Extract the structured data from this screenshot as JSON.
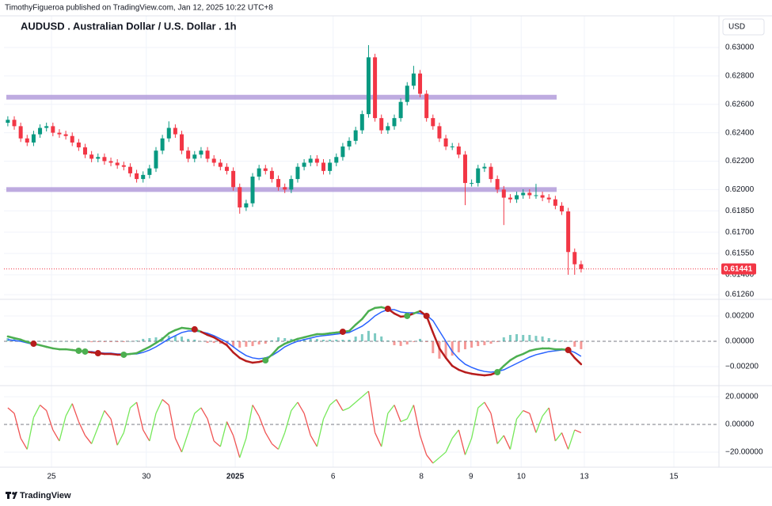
{
  "header": {
    "byline": "TimothyFigueroa published on TradingView.com, Jan 12, 2025 10:22 UTC+8"
  },
  "footer": {
    "brand": "TradingView"
  },
  "chart_data": [
    {
      "type": "candlestick",
      "title": "AUDUSD . Australian Dollar / U.S. Dollar . 1h",
      "currency": "USD",
      "open": [
        0.6247,
        0.62491,
        0.62446,
        0.6236,
        0.62331,
        0.62389,
        0.62434,
        0.62446,
        0.624,
        0.62389,
        0.62377,
        0.62331,
        0.62297,
        0.62246,
        0.62217,
        0.62229,
        0.622,
        0.62189,
        0.62171,
        0.6216,
        0.62114,
        0.62074,
        0.62103,
        0.62149,
        0.62274,
        0.6236,
        0.62434,
        0.62389,
        0.62274,
        0.62217,
        0.62246,
        0.62274,
        0.62217,
        0.62189,
        0.6216,
        0.62131,
        0.62017,
        0.61874,
        0.61903,
        0.62091,
        0.62149,
        0.62131,
        0.62074,
        0.62017,
        0.62,
        0.62074,
        0.6216,
        0.62189,
        0.62217,
        0.62189,
        0.62131,
        0.62189,
        0.62229,
        0.62303,
        0.62343,
        0.62417,
        0.62531,
        0.62931,
        0.62503,
        0.62417,
        0.62446,
        0.62503,
        0.62617,
        0.62731,
        0.62817,
        0.62674,
        0.62503,
        0.62446,
        0.6236,
        0.62303,
        0.62303,
        0.62246,
        0.62046,
        0.62046,
        0.62149,
        0.6216,
        0.62074,
        0.62,
        0.61943,
        0.61931,
        0.6196,
        0.61977,
        0.6196,
        0.6196,
        0.61943,
        0.61931,
        0.61886,
        0.61846,
        0.6156,
        0.61474
      ],
      "high": [
        0.62516,
        0.62516,
        0.62471,
        0.62385,
        0.62414,
        0.62459,
        0.62471,
        0.62471,
        0.62425,
        0.62414,
        0.62402,
        0.62356,
        0.62322,
        0.62271,
        0.62254,
        0.62254,
        0.62225,
        0.62214,
        0.62196,
        0.62185,
        0.62139,
        0.62128,
        0.62174,
        0.62299,
        0.62385,
        0.6248,
        0.62459,
        0.62414,
        0.62299,
        0.62271,
        0.62299,
        0.62299,
        0.62242,
        0.62214,
        0.62185,
        0.62156,
        0.62042,
        0.61928,
        0.62116,
        0.62174,
        0.62174,
        0.62156,
        0.62099,
        0.62042,
        0.62099,
        0.62185,
        0.62214,
        0.62242,
        0.62242,
        0.62214,
        0.62214,
        0.62254,
        0.62328,
        0.62368,
        0.62442,
        0.62556,
        0.63017,
        0.62956,
        0.62528,
        0.62471,
        0.62528,
        0.62642,
        0.62756,
        0.62871,
        0.62842,
        0.62699,
        0.62528,
        0.62471,
        0.62385,
        0.62328,
        0.62328,
        0.62271,
        0.62071,
        0.62174,
        0.62185,
        0.62185,
        0.62099,
        0.62025,
        0.61968,
        0.61985,
        0.62002,
        0.62002,
        0.6204,
        0.61985,
        0.61968,
        0.61956,
        0.61911,
        0.61871,
        0.61585,
        0.61499
      ],
      "low": [
        0.62445,
        0.62421,
        0.62335,
        0.62306,
        0.62306,
        0.62364,
        0.62409,
        0.62375,
        0.62364,
        0.62352,
        0.62306,
        0.62272,
        0.62221,
        0.62192,
        0.62192,
        0.62175,
        0.62164,
        0.62146,
        0.62135,
        0.62089,
        0.62049,
        0.62049,
        0.62078,
        0.62124,
        0.62249,
        0.62335,
        0.62364,
        0.62249,
        0.62192,
        0.62192,
        0.62221,
        0.62192,
        0.62164,
        0.62135,
        0.62106,
        0.61992,
        0.6183,
        0.61849,
        0.61878,
        0.62066,
        0.62106,
        0.62049,
        0.61992,
        0.61975,
        0.61975,
        0.62049,
        0.62135,
        0.62164,
        0.62164,
        0.62106,
        0.62106,
        0.62164,
        0.62204,
        0.62278,
        0.62318,
        0.62392,
        0.62506,
        0.62478,
        0.62392,
        0.62392,
        0.62421,
        0.62478,
        0.62592,
        0.62706,
        0.62649,
        0.62478,
        0.62421,
        0.62335,
        0.62278,
        0.62278,
        0.62221,
        0.6189,
        0.62021,
        0.62021,
        0.62124,
        0.62049,
        0.61975,
        0.6175,
        0.61906,
        0.61906,
        0.61935,
        0.61935,
        0.61935,
        0.61918,
        0.61906,
        0.61861,
        0.61821,
        0.614,
        0.614,
        0.61416
      ],
      "close": [
        0.62491,
        0.62446,
        0.6236,
        0.62331,
        0.62389,
        0.62434,
        0.62446,
        0.624,
        0.62389,
        0.62377,
        0.62331,
        0.62297,
        0.62246,
        0.62217,
        0.62229,
        0.622,
        0.62189,
        0.62171,
        0.6216,
        0.62114,
        0.62074,
        0.62103,
        0.62149,
        0.62274,
        0.6236,
        0.62434,
        0.62389,
        0.62274,
        0.62217,
        0.62246,
        0.62274,
        0.62217,
        0.62189,
        0.6216,
        0.62131,
        0.62017,
        0.61874,
        0.61903,
        0.62091,
        0.62149,
        0.62131,
        0.62074,
        0.62017,
        0.62,
        0.62074,
        0.6216,
        0.62189,
        0.62217,
        0.62189,
        0.62131,
        0.62189,
        0.62229,
        0.62303,
        0.62343,
        0.62417,
        0.62531,
        0.62931,
        0.62503,
        0.62417,
        0.62446,
        0.62503,
        0.62617,
        0.62731,
        0.62817,
        0.62674,
        0.62503,
        0.62446,
        0.6236,
        0.62303,
        0.62303,
        0.62246,
        0.62046,
        0.62046,
        0.62149,
        0.6216,
        0.62074,
        0.62,
        0.61943,
        0.61931,
        0.6196,
        0.61977,
        0.6196,
        0.6196,
        0.61943,
        0.61931,
        0.61886,
        0.61846,
        0.6156,
        0.61474,
        0.61441
      ],
      "up_color": "#089981",
      "down_color": "#f23645",
      "levels": [
        0.6265,
        0.62
      ],
      "level_color": "#b39ddb",
      "ylim": [
        0.61227,
        0.63223
      ],
      "yticks": [
        {
          "value": 0.63,
          "label": "0.63000"
        },
        {
          "value": 0.628,
          "label": "0.62800"
        },
        {
          "value": 0.626,
          "label": "0.62600"
        },
        {
          "value": 0.624,
          "label": "0.62400"
        },
        {
          "value": 0.622,
          "label": "0.62200"
        },
        {
          "value": 0.62,
          "label": "0.62000"
        },
        {
          "value": 0.6185,
          "label": "0.61850"
        },
        {
          "value": 0.617,
          "label": "0.61700"
        },
        {
          "value": 0.6155,
          "label": "0.61550"
        },
        {
          "value": 0.614,
          "label": "0.61400"
        },
        {
          "value": 0.6126,
          "label": "0.61260"
        }
      ],
      "xlim": [
        -0.6,
        110.4
      ],
      "xticks": [
        {
          "value": 6.78,
          "label": "25"
        },
        {
          "value": 21.5,
          "label": "30"
        },
        {
          "value": 35.3,
          "label": "2025"
        },
        {
          "value": 50.5,
          "label": "6"
        },
        {
          "value": 64.2,
          "label": "8"
        },
        {
          "value": 71.9,
          "label": "9"
        },
        {
          "value": 79.7,
          "label": "10"
        },
        {
          "value": 89.5,
          "label": "13"
        },
        {
          "value": 103.4,
          "label": "15"
        }
      ],
      "grid": true
    },
    {
      "type": "macd",
      "macd": [
        0.00038,
        0.00025,
        0.00013,
        -6e-05,
        -0.00019,
        -0.00031,
        -0.00044,
        -0.00056,
        -0.00063,
        -0.00063,
        -0.00069,
        -0.00075,
        -0.00081,
        -0.00088,
        -0.00094,
        -0.001,
        -0.001,
        -0.00106,
        -0.00106,
        -0.001,
        -0.00094,
        -0.00069,
        -0.00044,
        -0.00013,
        0.00019,
        0.00063,
        0.00088,
        0.00106,
        0.001,
        0.00094,
        0.00075,
        0.0005,
        0.00031,
        0,
        -0.00031,
        -0.00088,
        -0.00131,
        -0.00156,
        -0.00169,
        -0.00163,
        -0.0015,
        -0.00106,
        -0.0005,
        -0.00019,
        0,
        0.00019,
        0.00031,
        0.00044,
        0.00056,
        0.00056,
        0.00063,
        0.00069,
        0.00075,
        0.00081,
        0.00131,
        0.00175,
        0.00238,
        0.00263,
        0.00269,
        0.00256,
        0.00219,
        0.00194,
        0.002,
        0.00219,
        0.00238,
        0.002,
        0.00069,
        -0.00056,
        -0.00131,
        -0.00194,
        -0.00225,
        -0.00244,
        -0.00256,
        -0.00263,
        -0.00269,
        -0.00263,
        -0.00244,
        -0.00194,
        -0.0015,
        -0.00119,
        -0.001,
        -0.00075,
        -0.00063,
        -0.00056,
        -0.00056,
        -0.00063,
        -0.00063,
        -0.00069,
        -0.00131,
        -0.00181
      ],
      "signal": [
        0.00013,
        6e-05,
        0,
        -0.00013,
        -0.00025,
        -0.00031,
        -0.00044,
        -0.00056,
        -0.00063,
        -0.00063,
        -0.00069,
        -0.00075,
        -0.00081,
        -0.00081,
        -0.00088,
        -0.00094,
        -0.00094,
        -0.001,
        -0.001,
        -0.001,
        -0.001,
        -0.00088,
        -0.00069,
        -0.00044,
        -0.00013,
        0.00019,
        0.00044,
        0.00069,
        0.00081,
        0.00081,
        0.00075,
        0.00063,
        0.00044,
        0.00019,
        -6e-05,
        -0.00044,
        -0.00081,
        -0.00113,
        -0.00131,
        -0.00138,
        -0.00131,
        -0.00113,
        -0.00081,
        -0.00044,
        -0.00019,
        0,
        0.00013,
        0.00025,
        0.00038,
        0.00044,
        0.0005,
        0.00056,
        0.00063,
        0.00069,
        0.00094,
        0.00119,
        0.00156,
        0.002,
        0.00231,
        0.0025,
        0.0025,
        0.00231,
        0.00225,
        0.00225,
        0.00219,
        0.00206,
        0.00163,
        0.00081,
        0,
        -0.00081,
        -0.00138,
        -0.00181,
        -0.00206,
        -0.00225,
        -0.00238,
        -0.00244,
        -0.00238,
        -0.00225,
        -0.002,
        -0.00175,
        -0.0015,
        -0.00125,
        -0.00106,
        -0.00094,
        -0.00081,
        -0.00075,
        -0.00069,
        -0.00069,
        -0.00088,
        -0.00119
      ],
      "histogram": [
        0.00025,
        0.00019,
        0.00013,
        7e-05,
        6e-05,
        0,
        0,
        0,
        0,
        0,
        0,
        0,
        0,
        -7e-05,
        -6e-05,
        -6e-05,
        -6e-05,
        -6e-05,
        -6e-05,
        0,
        6e-05,
        0.00019,
        0.00025,
        0.00031,
        0.00032,
        0.00044,
        0.00044,
        0.00037,
        0.00019,
        0.00013,
        0,
        -0.00013,
        -0.00013,
        -0.00019,
        -0.00025,
        -0.00044,
        -0.0005,
        -0.00043,
        -0.00038,
        -0.00025,
        -0.00019,
        7e-05,
        0.00031,
        0.00025,
        0.00019,
        0.00019,
        0.00018,
        0.00019,
        0.00018,
        0.00012,
        0.00013,
        0.00013,
        0.00012,
        0.00012,
        0.00037,
        0.00056,
        0.00082,
        0.00063,
        0.00038,
        6e-05,
        -0.00031,
        -0.00037,
        -0.00025,
        -6e-05,
        0.00019,
        -6e-05,
        -0.00094,
        -0.00137,
        -0.00131,
        -0.00113,
        -0.00087,
        -0.00063,
        -0.0005,
        -0.00038,
        -0.00031,
        -0.00019,
        -6e-05,
        0.00031,
        0.0005,
        0.00056,
        0.0005,
        0.0005,
        0.00043,
        0.00038,
        0.00025,
        0.00012,
        6e-05,
        0,
        -0.00043,
        -0.00062
      ],
      "rise_color": "#4caf50",
      "fall_color": "#b71c1c",
      "signal_color": "#2962ff",
      "hist_up_color": "#26a69a",
      "hist_down_color": "#ef5350",
      "cross_up": [
        11,
        12,
        18,
        40,
        62,
        76
      ],
      "cross_down": [
        4,
        14,
        29,
        52,
        59,
        65,
        87
      ],
      "ylim": [
        -0.0035,
        0.00331
      ],
      "yticks": [
        {
          "value": 0.002,
          "label": "0.00200"
        },
        {
          "value": 0,
          "label": "0.00000"
        },
        {
          "value": -0.002,
          "label": "−0.00200"
        }
      ]
    },
    {
      "type": "line",
      "values": [
        12,
        8,
        -10,
        -18,
        5,
        14,
        10,
        -4,
        -12,
        6,
        15,
        2,
        -8,
        -14,
        -2,
        10,
        4,
        -15,
        -6,
        12,
        16,
        -4,
        -12,
        8,
        18,
        14,
        -10,
        -20,
        -6,
        8,
        12,
        4,
        -12,
        -16,
        2,
        -8,
        -24,
        -10,
        14,
        6,
        -6,
        -14,
        -18,
        -6,
        10,
        16,
        8,
        -8,
        -16,
        4,
        14,
        18,
        10,
        12,
        16,
        20,
        24,
        -6,
        -16,
        8,
        14,
        2,
        4,
        14,
        -8,
        -22,
        -28,
        -24,
        -20,
        -10,
        -4,
        -22,
        -10,
        12,
        16,
        8,
        -14,
        -8,
        -18,
        4,
        10,
        8,
        -6,
        6,
        12,
        -12,
        -6,
        -18,
        -4,
        -6
      ],
      "rise_color": "#76e85a",
      "fall_color": "#f05454",
      "ylim": [
        -30.9,
        28
      ],
      "yticks": [
        {
          "value": 20,
          "label": "20.00000"
        },
        {
          "value": 0,
          "label": "0.00000"
        },
        {
          "value": -20,
          "label": "−20.00000"
        }
      ]
    }
  ]
}
